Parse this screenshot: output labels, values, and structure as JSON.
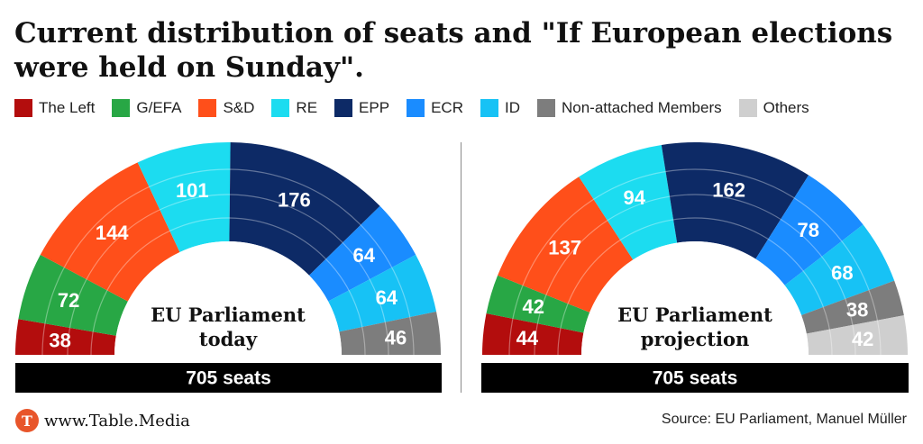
{
  "title": "Current distribution of seats and \"If European elections were held on Sunday\".",
  "legend": [
    {
      "label": "The Left",
      "color": "#b30d0d"
    },
    {
      "label": "G/EFA",
      "color": "#28a745"
    },
    {
      "label": "S&D",
      "color": "#ff4f1a"
    },
    {
      "label": "RE",
      "color": "#1cdcf0"
    },
    {
      "label": "EPP",
      "color": "#0d2a66"
    },
    {
      "label": "ECR",
      "color": "#1a8cff"
    },
    {
      "label": "ID",
      "color": "#17c2f5"
    },
    {
      "label": "Non-attached Members",
      "color": "#7d7d7d"
    },
    {
      "label": "Others",
      "color": "#cfcfcf"
    }
  ],
  "chart_data": [
    {
      "type": "semicircle-parliament",
      "title": "EU Parliament today",
      "total_label": "705 seats",
      "total": 705,
      "categories": [
        "The Left",
        "G/EFA",
        "S&D",
        "RE",
        "EPP",
        "ECR",
        "ID",
        "Non-attached Members",
        "Others"
      ],
      "values": [
        38,
        72,
        144,
        101,
        176,
        64,
        64,
        46,
        0
      ]
    },
    {
      "type": "semicircle-parliament",
      "title": "EU Parliament projection",
      "total_label": "705 seats",
      "total": 705,
      "categories": [
        "The Left",
        "G/EFA",
        "S&D",
        "RE",
        "EPP",
        "ECR",
        "ID",
        "Non-attached Members",
        "Others"
      ],
      "values": [
        44,
        42,
        137,
        94,
        162,
        78,
        68,
        38,
        42
      ]
    }
  ],
  "footer": {
    "logo_letter": "T",
    "site": "www.Table.Media",
    "source": "Source: EU Parliament, Manuel Müller"
  }
}
